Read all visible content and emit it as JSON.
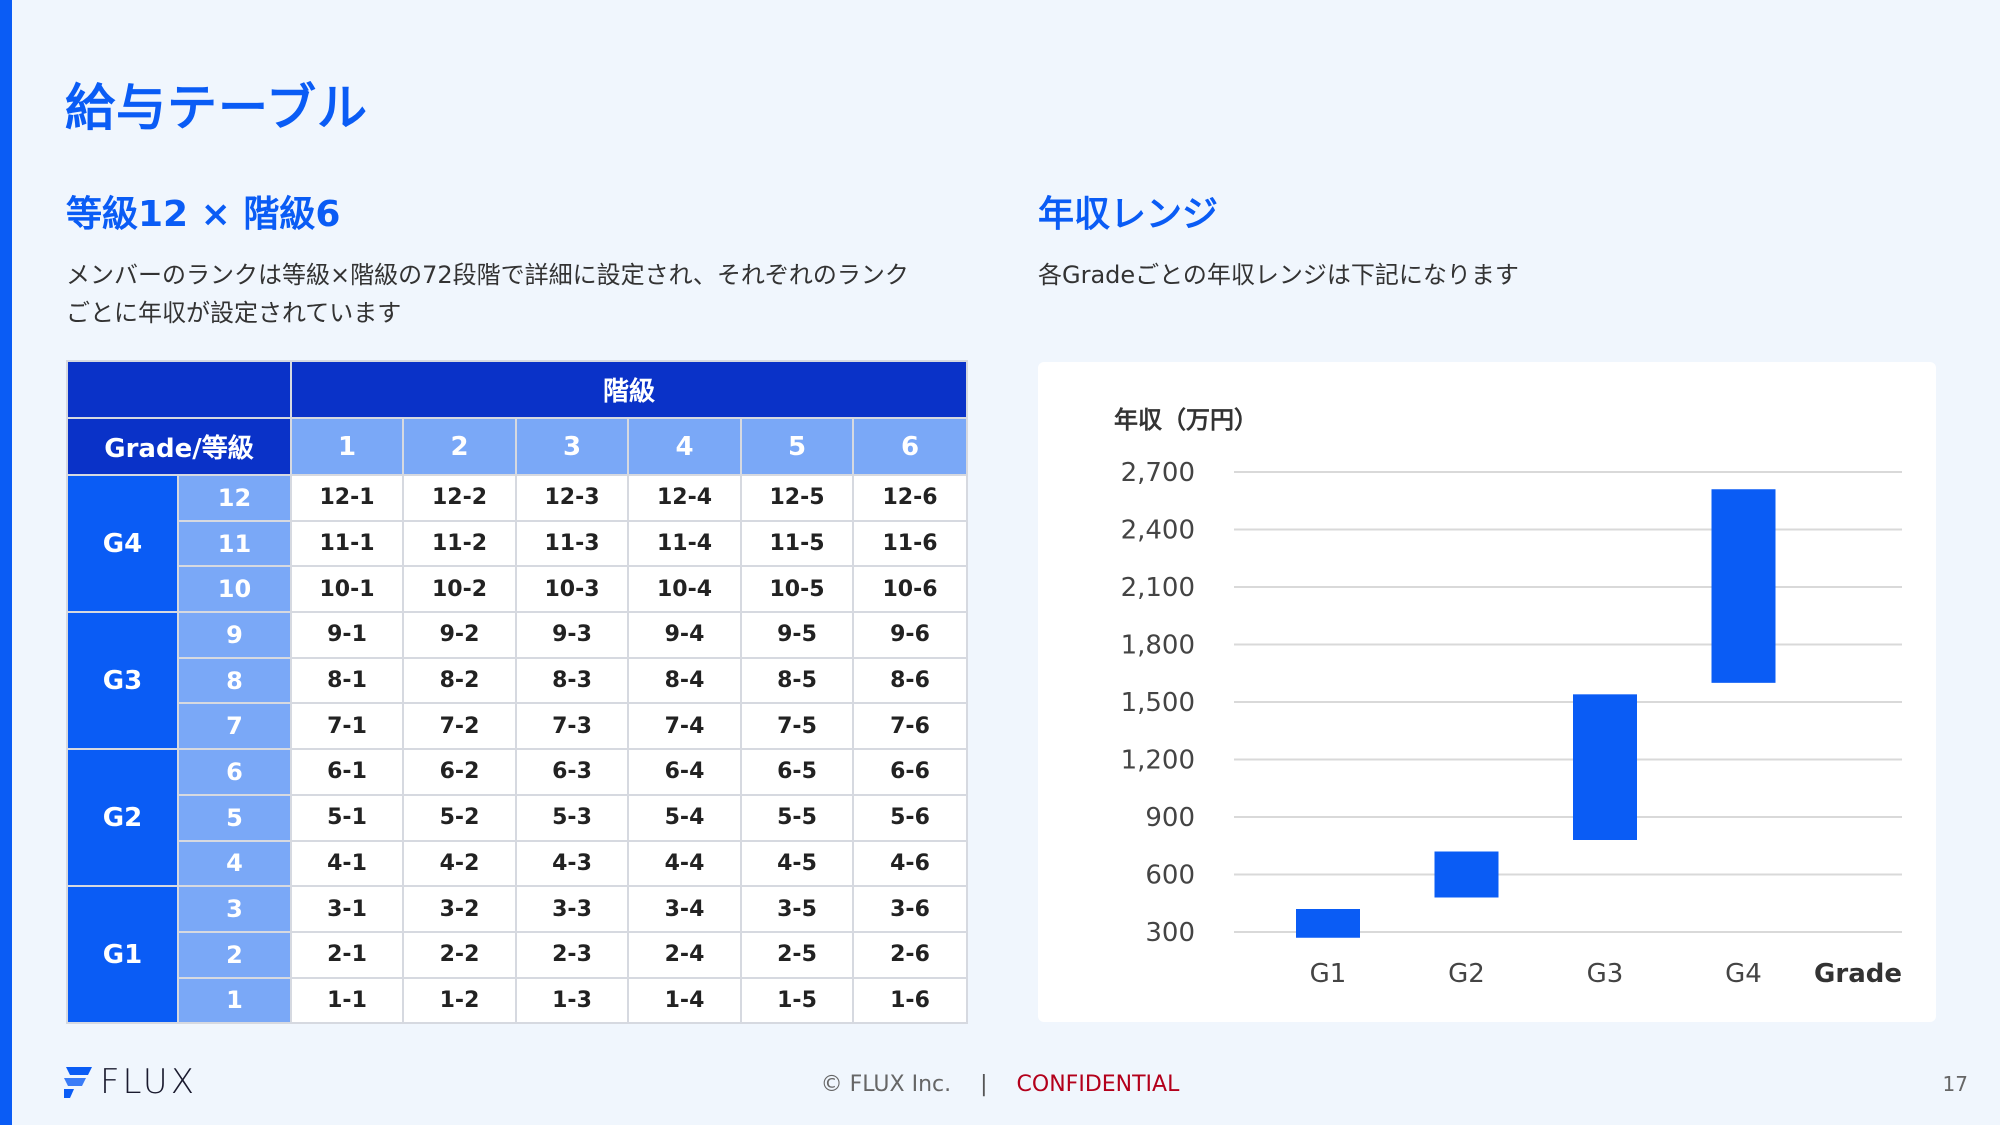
{
  "page": {
    "title": "給与テーブル",
    "page_number": "17",
    "footer_copyright": "© FLUX Inc.",
    "footer_separator": "|",
    "footer_confidential": "CONFIDENTIAL",
    "logo_text": "FLUX"
  },
  "left_section": {
    "title": "等級12 × 階級6",
    "desc_line1": "メンバーのランクは等級×階級の72段階で詳細に設定され、それぞれのランク",
    "desc_line2": "ごとに年収が設定されています"
  },
  "right_section": {
    "title": "年収レンジ",
    "desc": "各Gradeごとの年収レンジは下記になります"
  },
  "table": {
    "kaikyu_header": "階級",
    "grade_header": "Grade/等級",
    "columns": [
      "1",
      "2",
      "3",
      "4",
      "5",
      "6"
    ],
    "groups": [
      {
        "grade": "G4",
        "rows": [
          {
            "rank": "12",
            "cells": [
              "12-1",
              "12-2",
              "12-3",
              "12-4",
              "12-5",
              "12-6"
            ]
          },
          {
            "rank": "11",
            "cells": [
              "11-1",
              "11-2",
              "11-3",
              "11-4",
              "11-5",
              "11-6"
            ]
          },
          {
            "rank": "10",
            "cells": [
              "10-1",
              "10-2",
              "10-3",
              "10-4",
              "10-5",
              "10-6"
            ]
          }
        ]
      },
      {
        "grade": "G3",
        "rows": [
          {
            "rank": "9",
            "cells": [
              "9-1",
              "9-2",
              "9-3",
              "9-4",
              "9-5",
              "9-6"
            ]
          },
          {
            "rank": "8",
            "cells": [
              "8-1",
              "8-2",
              "8-3",
              "8-4",
              "8-5",
              "8-6"
            ]
          },
          {
            "rank": "7",
            "cells": [
              "7-1",
              "7-2",
              "7-3",
              "7-4",
              "7-5",
              "7-6"
            ]
          }
        ]
      },
      {
        "grade": "G2",
        "rows": [
          {
            "rank": "6",
            "cells": [
              "6-1",
              "6-2",
              "6-3",
              "6-4",
              "6-5",
              "6-6"
            ]
          },
          {
            "rank": "5",
            "cells": [
              "5-1",
              "5-2",
              "5-3",
              "5-4",
              "5-5",
              "5-6"
            ]
          },
          {
            "rank": "4",
            "cells": [
              "4-1",
              "4-2",
              "4-3",
              "4-4",
              "4-5",
              "4-6"
            ]
          }
        ]
      },
      {
        "grade": "G1",
        "rows": [
          {
            "rank": "3",
            "cells": [
              "3-1",
              "3-2",
              "3-3",
              "3-4",
              "3-5",
              "3-6"
            ]
          },
          {
            "rank": "2",
            "cells": [
              "2-1",
              "2-2",
              "2-3",
              "2-4",
              "2-5",
              "2-6"
            ]
          },
          {
            "rank": "1",
            "cells": [
              "1-1",
              "1-2",
              "1-3",
              "1-4",
              "1-5",
              "1-6"
            ]
          }
        ]
      }
    ]
  },
  "chart_data": {
    "type": "bar",
    "subtype": "floating-range",
    "ylabel": "年収（万円）",
    "xlabel": "Grade",
    "categories": [
      "G1",
      "G2",
      "G3",
      "G4"
    ],
    "ranges": [
      [
        270,
        420
      ],
      [
        480,
        720
      ],
      [
        780,
        1540
      ],
      [
        1600,
        2610
      ]
    ],
    "yticks": [
      "300",
      "600",
      "900",
      "1,200",
      "1,500",
      "1,800",
      "2,100",
      "2,400",
      "2,700"
    ],
    "ylim": [
      300,
      2700
    ],
    "grid": true,
    "bar_color": "#0a5cf5",
    "grid_color": "#d9d9d9"
  },
  "colors": {
    "accent": "#0a5cf5",
    "header_dark": "#0a32c8",
    "header_light": "#7aa8f7",
    "confidential": "#b3001b"
  }
}
